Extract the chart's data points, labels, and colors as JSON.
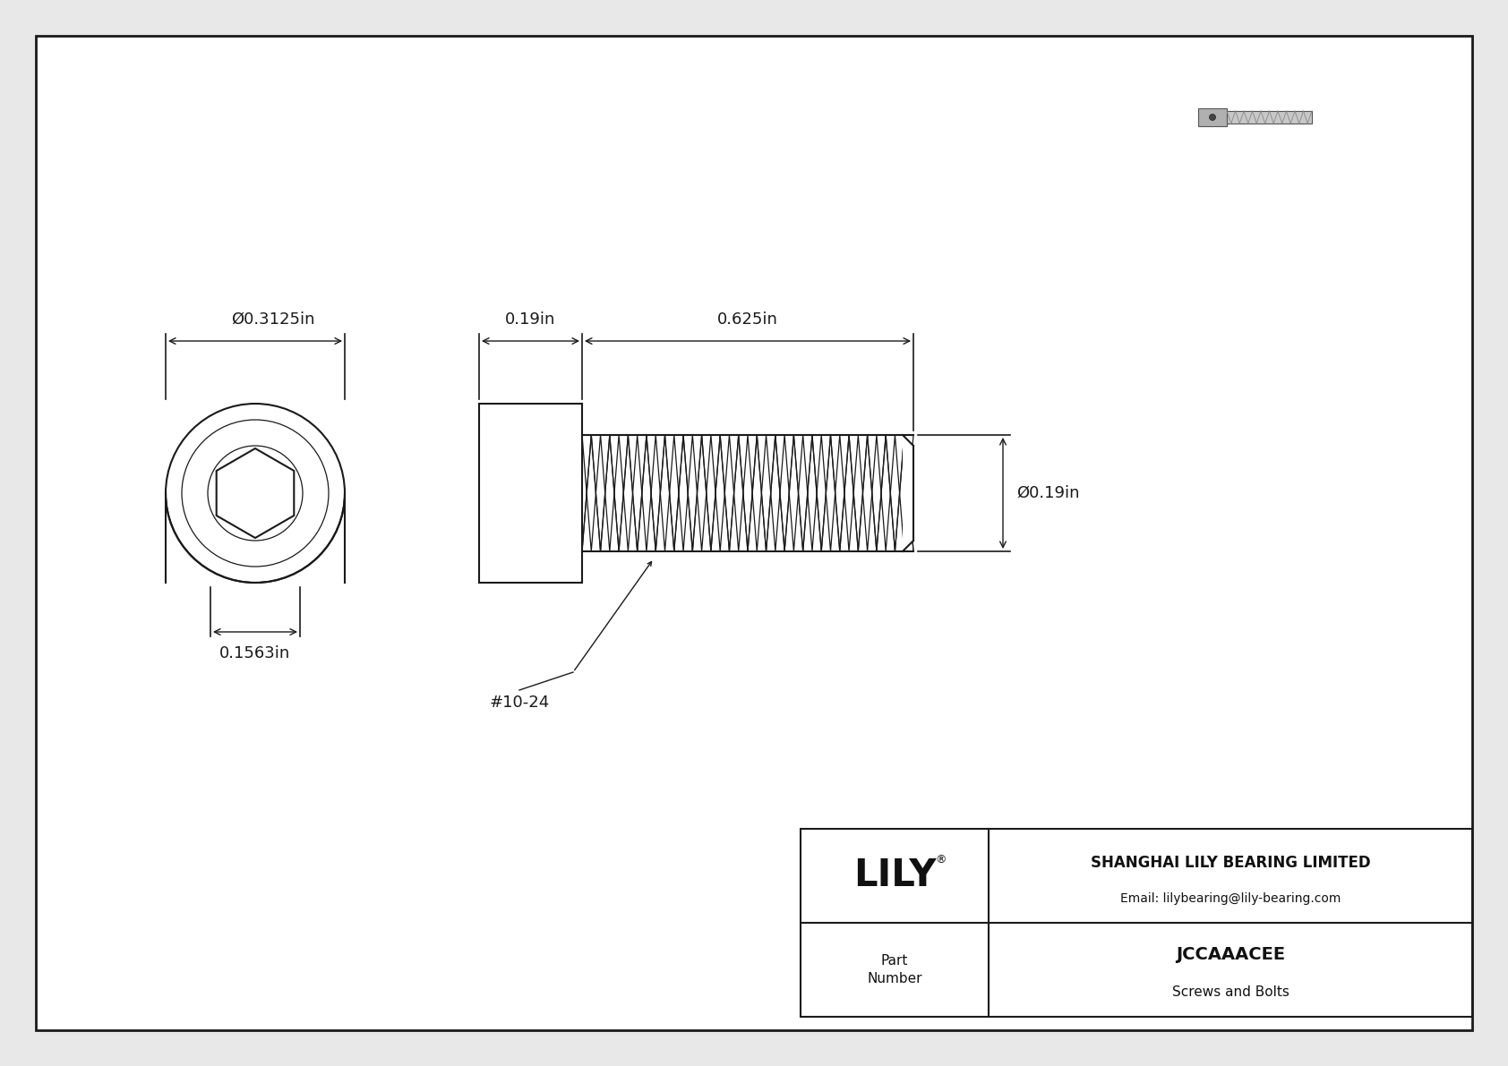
{
  "bg_color": "#e8e8e8",
  "border_color": "#1a1a1a",
  "line_color": "#1a1a1a",
  "dim_color": "#1a1a1a",
  "white": "#ffffff",
  "title_company": "SHANGHAI LILY BEARING LIMITED",
  "title_email": "Email: lilybearing@lily-bearing.com",
  "part_number": "JCCAAACEE",
  "part_category": "Screws and Bolts",
  "brand": "LILY",
  "brand_reg": "®",
  "dim_head_dia": "Ø0.3125in",
  "dim_hex_dia": "0.1563in",
  "dim_head_len": "0.19in",
  "dim_body_len": "0.625in",
  "dim_body_dia": "Ø0.19in",
  "thread_label": "#10-24",
  "lw_main": 1.5,
  "lw_thin": 0.9,
  "lw_dim": 1.0,
  "fontsize_dim": 13,
  "fontsize_tb": 11,
  "fontsize_lily": 30
}
